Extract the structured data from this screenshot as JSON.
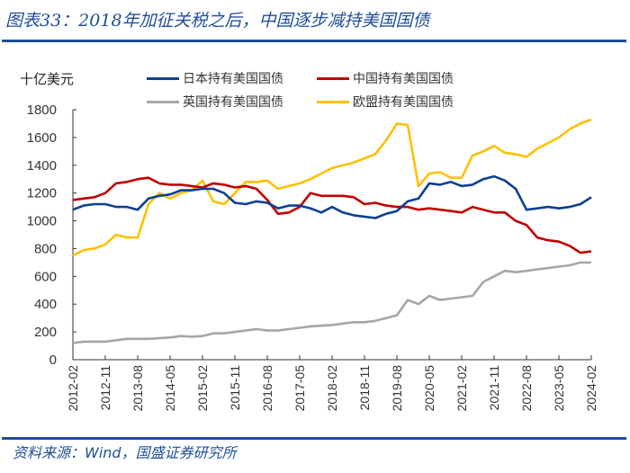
{
  "header": {
    "title": "图表33：2018年加征关税之后，中国逐步减持美国国债"
  },
  "footer": {
    "source": "资料来源：Wind，国盛证券研究所"
  },
  "colors": {
    "accent": "#1f4e9a"
  },
  "chart_data": {
    "type": "line",
    "title": "",
    "ylabel": "十亿美元",
    "xlabel": "",
    "ylim": [
      0,
      1800
    ],
    "yticks": [
      "0",
      "200",
      "400",
      "600",
      "800",
      "1000",
      "1200",
      "1400",
      "1600",
      "1800"
    ],
    "xticks": [
      "2012-02",
      "2012-11",
      "2013-08",
      "2014-05",
      "2015-02",
      "2015-11",
      "2016-08",
      "2017-05",
      "2018-02",
      "2018-11",
      "2019-08",
      "2020-05",
      "2021-02",
      "2021-11",
      "2022-08",
      "2023-05",
      "2024-02"
    ],
    "grid": false,
    "legend": "top",
    "x": [
      "2012-02",
      "2012-05",
      "2012-08",
      "2012-11",
      "2013-02",
      "2013-05",
      "2013-08",
      "2013-11",
      "2014-02",
      "2014-05",
      "2014-08",
      "2014-11",
      "2015-02",
      "2015-05",
      "2015-08",
      "2015-11",
      "2016-02",
      "2016-05",
      "2016-08",
      "2016-11",
      "2017-02",
      "2017-05",
      "2017-08",
      "2017-11",
      "2018-02",
      "2018-05",
      "2018-08",
      "2018-11",
      "2019-02",
      "2019-05",
      "2019-08",
      "2019-11",
      "2020-02",
      "2020-05",
      "2020-08",
      "2020-11",
      "2021-02",
      "2021-05",
      "2021-08",
      "2021-11",
      "2022-02",
      "2022-05",
      "2022-08",
      "2022-11",
      "2023-02",
      "2023-05",
      "2023-08",
      "2023-11",
      "2024-02"
    ],
    "series": [
      {
        "name": "日本持有美国国债",
        "color": "#0e3f91",
        "values": [
          1080,
          1110,
          1120,
          1120,
          1100,
          1100,
          1080,
          1160,
          1180,
          1190,
          1220,
          1220,
          1230,
          1230,
          1200,
          1130,
          1120,
          1140,
          1130,
          1090,
          1110,
          1110,
          1090,
          1060,
          1100,
          1060,
          1040,
          1030,
          1020,
          1050,
          1070,
          1140,
          1160,
          1270,
          1260,
          1280,
          1250,
          1260,
          1300,
          1320,
          1290,
          1230,
          1080,
          1090,
          1100,
          1090,
          1100,
          1120,
          1170
        ]
      },
      {
        "name": "中国持有美国国债",
        "color": "#c00000",
        "values": [
          1150,
          1160,
          1170,
          1200,
          1270,
          1280,
          1300,
          1310,
          1270,
          1260,
          1260,
          1250,
          1240,
          1270,
          1260,
          1240,
          1250,
          1230,
          1150,
          1050,
          1060,
          1100,
          1200,
          1180,
          1180,
          1180,
          1170,
          1120,
          1130,
          1110,
          1100,
          1100,
          1080,
          1090,
          1080,
          1070,
          1060,
          1100,
          1080,
          1060,
          1060,
          1000,
          970,
          880,
          860,
          850,
          820,
          770,
          780
        ]
      },
      {
        "name": "英国持有美国国债",
        "color": "#a6a6a6",
        "values": [
          120,
          130,
          130,
          130,
          140,
          150,
          150,
          150,
          155,
          160,
          170,
          165,
          170,
          190,
          190,
          200,
          210,
          220,
          210,
          210,
          220,
          230,
          240,
          245,
          250,
          260,
          270,
          270,
          280,
          300,
          320,
          430,
          400,
          460,
          430,
          440,
          450,
          460,
          560,
          600,
          640,
          630,
          640,
          650,
          660,
          670,
          680,
          700,
          700
        ]
      },
      {
        "name": "欧盟持有美国国债",
        "color": "#ffc000",
        "values": [
          750,
          790,
          800,
          830,
          900,
          880,
          880,
          1120,
          1200,
          1160,
          1200,
          1220,
          1290,
          1140,
          1120,
          1200,
          1280,
          1280,
          1290,
          1230,
          1250,
          1270,
          1300,
          1340,
          1380,
          1400,
          1420,
          1450,
          1480,
          1580,
          1700,
          1690,
          1250,
          1340,
          1350,
          1310,
          1310,
          1470,
          1500,
          1540,
          1490,
          1480,
          1460,
          1520,
          1560,
          1600,
          1660,
          1700,
          1730
        ]
      }
    ]
  }
}
